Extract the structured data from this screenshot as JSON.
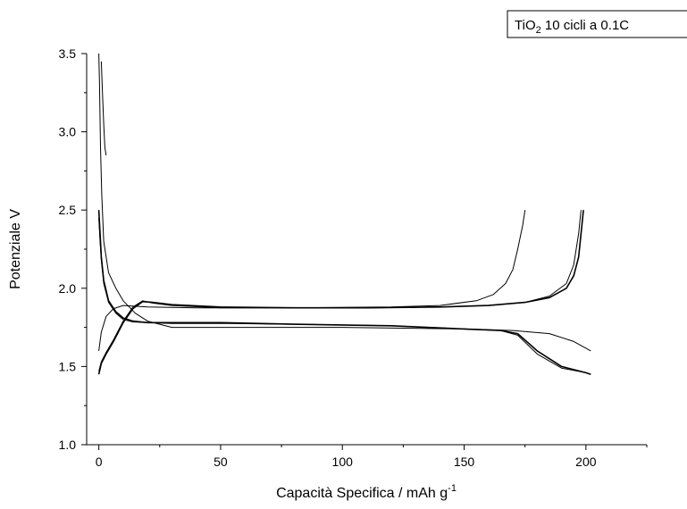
{
  "chart_data": {
    "type": "line",
    "xlabel": "Capacità Specifica / mAh g",
    "xlabel_sup": "-1",
    "ylabel": "Potenziale V",
    "legend": {
      "text_main": "TiO",
      "text_sub": "2",
      "text_rest": " 10 cicli a 0.1C",
      "placement": "top-right"
    },
    "xlim": [
      -5,
      225
    ],
    "ylim": [
      1.0,
      3.5
    ],
    "x_ticks": [
      0,
      50,
      100,
      150,
      200
    ],
    "x_tick_labels": [
      "0",
      "50",
      "100",
      "150",
      "200"
    ],
    "y_ticks": [
      1.0,
      1.5,
      2.0,
      2.5,
      3.0,
      3.5
    ],
    "y_tick_labels": [
      "1.0",
      "1.5",
      "2.0",
      "2.5",
      "3.0",
      "3.5"
    ],
    "grid": false,
    "series": [
      {
        "weight": "bold",
        "x": [
          0,
          0.5,
          1,
          2,
          4,
          7,
          10,
          14,
          20,
          30,
          50,
          80,
          120,
          150,
          165,
          172,
          180,
          190,
          200,
          202
        ],
        "y": [
          2.5,
          2.35,
          2.2,
          2.05,
          1.92,
          1.85,
          1.81,
          1.79,
          1.78,
          1.78,
          1.78,
          1.77,
          1.76,
          1.74,
          1.73,
          1.71,
          1.6,
          1.5,
          1.46,
          1.45
        ]
      },
      {
        "weight": "thin",
        "x": [
          0,
          0.5,
          1,
          2,
          4,
          7,
          10,
          14,
          20,
          30,
          50,
          80,
          120,
          150,
          165,
          172,
          180,
          190,
          200,
          202
        ],
        "y": [
          2.45,
          2.3,
          2.18,
          2.03,
          1.91,
          1.84,
          1.8,
          1.785,
          1.78,
          1.775,
          1.775,
          1.77,
          1.76,
          1.74,
          1.73,
          1.7,
          1.58,
          1.49,
          1.46,
          1.45
        ]
      },
      {
        "weight": "thin",
        "x": [
          0,
          0.3,
          0.7,
          1.2,
          2,
          4,
          7,
          10,
          15,
          20,
          25,
          30,
          50,
          100,
          150,
          170,
          185,
          195,
          202
        ],
        "y": [
          3.5,
          3.3,
          2.9,
          2.6,
          2.3,
          2.1,
          2.0,
          1.92,
          1.84,
          1.79,
          1.77,
          1.75,
          1.75,
          1.75,
          1.74,
          1.73,
          1.71,
          1.66,
          1.6
        ]
      },
      {
        "weight": "thin",
        "x": [
          1,
          1.5,
          2,
          2.5,
          3
        ],
        "y": [
          3.45,
          3.25,
          3.05,
          2.9,
          2.85
        ]
      },
      {
        "weight": "bold",
        "x": [
          0,
          1,
          3,
          6,
          10,
          14,
          18,
          22,
          30,
          50,
          80,
          110,
          140,
          160,
          175,
          185,
          192,
          195,
          197,
          198,
          199
        ],
        "y": [
          1.45,
          1.52,
          1.58,
          1.66,
          1.78,
          1.87,
          1.915,
          1.91,
          1.895,
          1.88,
          1.875,
          1.875,
          1.88,
          1.89,
          1.91,
          1.94,
          2.0,
          2.08,
          2.2,
          2.35,
          2.5
        ]
      },
      {
        "weight": "thin",
        "x": [
          0,
          1,
          3,
          6,
          10,
          14,
          18,
          22,
          30,
          50,
          80,
          110,
          140,
          160,
          175,
          185,
          192,
          195,
          197,
          198
        ],
        "y": [
          1.47,
          1.53,
          1.59,
          1.67,
          1.79,
          1.88,
          1.92,
          1.905,
          1.89,
          1.875,
          1.875,
          1.875,
          1.88,
          1.89,
          1.91,
          1.95,
          2.03,
          2.15,
          2.35,
          2.5
        ]
      },
      {
        "weight": "thin",
        "x": [
          0,
          1,
          3,
          6,
          10,
          20,
          40,
          80,
          120,
          140,
          155,
          162,
          167,
          170,
          172,
          174,
          175
        ],
        "y": [
          1.6,
          1.72,
          1.82,
          1.87,
          1.89,
          1.88,
          1.875,
          1.875,
          1.88,
          1.89,
          1.92,
          1.96,
          2.03,
          2.12,
          2.25,
          2.4,
          2.5
        ]
      }
    ]
  }
}
